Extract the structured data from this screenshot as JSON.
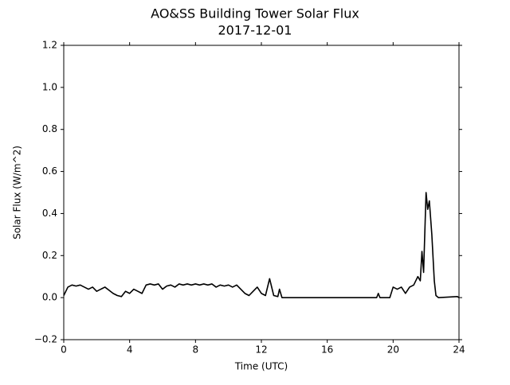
{
  "chart_data": {
    "type": "line",
    "title": "AO&SS Building Tower Solar Flux",
    "subtitle": "2017-12-01",
    "x_label": "Time (UTC)",
    "y_label": "Solar Flux (W/m^2)",
    "xlim": [
      0,
      24
    ],
    "xticks": [
      0,
      4,
      8,
      12,
      16,
      20,
      24
    ],
    "ylim": [
      -0.2,
      1.2
    ],
    "yticks": [
      {
        "value": -0.2,
        "label": "−0.2"
      },
      {
        "value": 0,
        "label": "0.0"
      },
      0.2,
      0.4,
      0.6,
      0.8,
      {
        "value": 1,
        "label": "1.0"
      },
      1.2
    ],
    "grid": false,
    "series": [
      {
        "color": "#000000",
        "x": [
          0,
          0.25,
          0.5,
          0.75,
          1,
          1.25,
          1.5,
          1.75,
          2,
          2.25,
          2.5,
          2.75,
          3,
          3.25,
          3.5,
          3.75,
          4,
          4.25,
          4.5,
          4.75,
          5,
          5.25,
          5.5,
          5.75,
          6,
          6.25,
          6.5,
          6.75,
          7,
          7.25,
          7.5,
          7.75,
          8,
          8.25,
          8.5,
          8.75,
          9,
          9.25,
          9.5,
          9.75,
          10,
          10.25,
          10.5,
          10.75,
          11,
          11.25,
          11.5,
          11.75,
          12,
          12.25,
          12.5,
          12.75,
          13,
          13.1,
          13.25,
          19,
          19.1,
          19.2,
          19.8,
          20,
          20.25,
          20.5,
          20.75,
          21,
          21.25,
          21.5,
          21.65,
          21.75,
          21.85,
          22,
          22.1,
          22.2,
          22.35,
          22.5,
          22.6,
          22.75,
          23.9,
          24
        ],
        "values": [
          0.01,
          0.05,
          0.06,
          0.055,
          0.06,
          0.05,
          0.04,
          0.05,
          0.03,
          0.04,
          0.05,
          0.035,
          0.02,
          0.01,
          0.005,
          0.03,
          0.02,
          0.04,
          0.03,
          0.02,
          0.06,
          0.065,
          0.06,
          0.065,
          0.04,
          0.055,
          0.06,
          0.05,
          0.065,
          0.06,
          0.065,
          0.06,
          0.065,
          0.06,
          0.065,
          0.06,
          0.065,
          0.05,
          0.06,
          0.055,
          0.06,
          0.05,
          0.06,
          0.04,
          0.02,
          0.01,
          0.03,
          0.05,
          0.02,
          0.01,
          0.09,
          0.01,
          0.005,
          0.04,
          0,
          0,
          0.02,
          0,
          0,
          0.05,
          0.04,
          0.05,
          0.02,
          0.05,
          0.06,
          0.1,
          0.08,
          0.22,
          0.12,
          0.5,
          0.42,
          0.46,
          0.3,
          0.08,
          0.01,
          0,
          0.005,
          0
        ]
      }
    ]
  }
}
